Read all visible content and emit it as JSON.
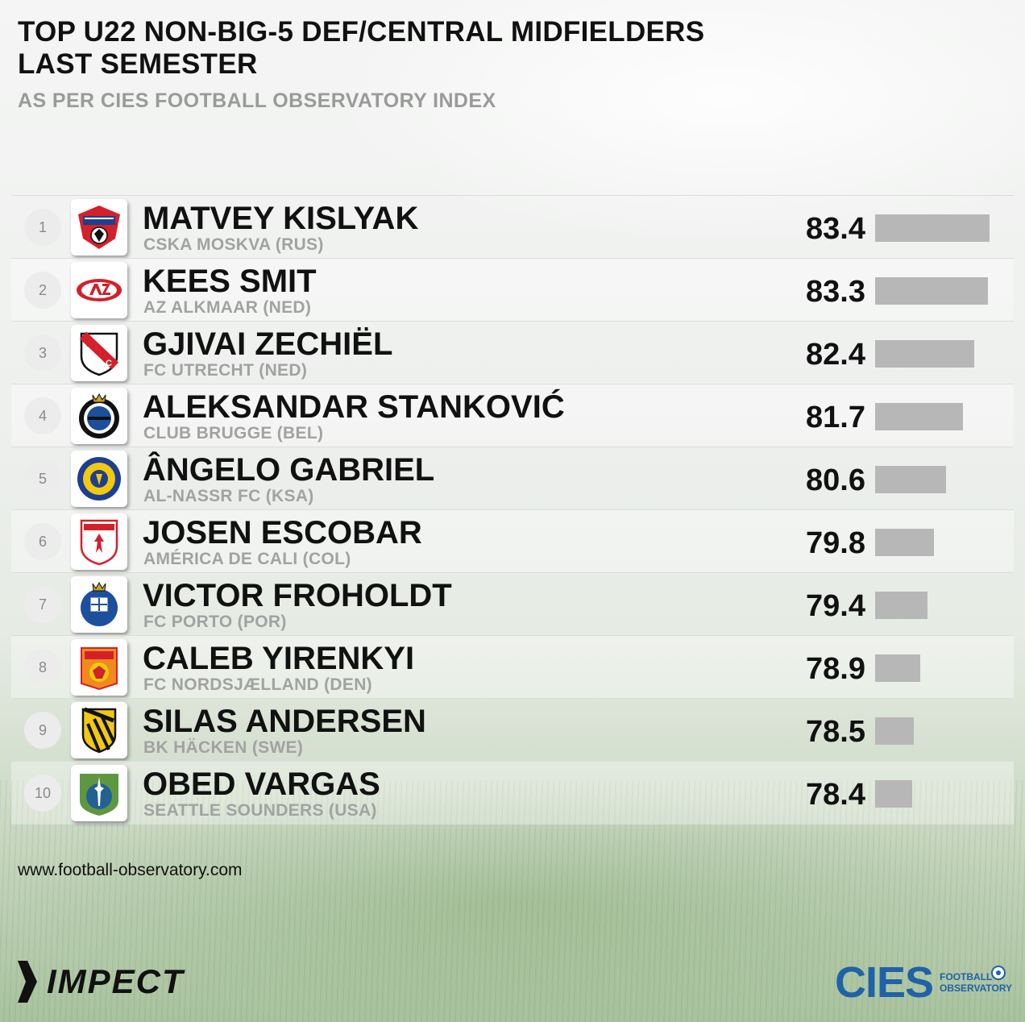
{
  "title_line1": "TOP U22 NON-BIG-5 DEF/CENTRAL MIDFIELDERS",
  "title_line2": "LAST SEMESTER",
  "subtitle": "AS PER CIES FOOTBALL OBSERVATORY INDEX",
  "website": "www.football-observatory.com",
  "brand_left": "IMPECT",
  "brand_right": "CIES",
  "brand_right_sub1": "FOOTBALL",
  "brand_right_sub2": "OBSERVATORY",
  "colors": {
    "bar": "#b7b7b7",
    "cies_blue": "#1f62a8"
  },
  "chart_data": {
    "type": "bar",
    "orientation": "horizontal",
    "title": "TOP U22 NON-BIG-5 DEF/CENTRAL MIDFIELDERS LAST SEMESTER",
    "subtitle": "AS PER CIES FOOTBALL OBSERVATORY INDEX",
    "xlim": [
      76,
      83.5
    ],
    "rows": [
      {
        "rank": "1",
        "name": "MATVEY KISLYAK",
        "club": "CSKA MOSKVA (RUS)",
        "value": 83.4,
        "value_label": "83.4",
        "logo": "cska-moskva-logo"
      },
      {
        "rank": "2",
        "name": "KEES SMIT",
        "club": "AZ ALKMAAR (NED)",
        "value": 83.3,
        "value_label": "83.3",
        "logo": "az-alkmaar-logo"
      },
      {
        "rank": "3",
        "name": "GJIVAI ZECHIËL",
        "club": "FC UTRECHT (NED)",
        "value": 82.4,
        "value_label": "82.4",
        "logo": "fc-utrecht-logo"
      },
      {
        "rank": "4",
        "name": "ALEKSANDAR STANKOVIĆ",
        "club": "CLUB BRUGGE (BEL)",
        "value": 81.7,
        "value_label": "81.7",
        "logo": "club-brugge-logo"
      },
      {
        "rank": "5",
        "name": "ÂNGELO GABRIEL",
        "club": "AL-NASSR FC (KSA)",
        "value": 80.6,
        "value_label": "80.6",
        "logo": "al-nassr-logo"
      },
      {
        "rank": "6",
        "name": "JOSEN ESCOBAR",
        "club": "AMÉRICA DE CALI (COL)",
        "value": 79.8,
        "value_label": "79.8",
        "logo": "america-de-cali-logo"
      },
      {
        "rank": "7",
        "name": "VICTOR FROHOLDT",
        "club": "FC PORTO (POR)",
        "value": 79.4,
        "value_label": "79.4",
        "logo": "fc-porto-logo"
      },
      {
        "rank": "8",
        "name": "CALEB YIRENKYI",
        "club": "FC NORDSJÆLLAND (DEN)",
        "value": 78.9,
        "value_label": "78.9",
        "logo": "fc-nordsjaelland-logo"
      },
      {
        "rank": "9",
        "name": "SILAS ANDERSEN",
        "club": "BK HÄCKEN (SWE)",
        "value": 78.5,
        "value_label": "78.5",
        "logo": "bk-hacken-logo"
      },
      {
        "rank": "10",
        "name": "OBED VARGAS",
        "club": "SEATTLE SOUNDERS (USA)",
        "value": 78.4,
        "value_label": "78.4",
        "logo": "seattle-sounders-logo"
      }
    ]
  }
}
